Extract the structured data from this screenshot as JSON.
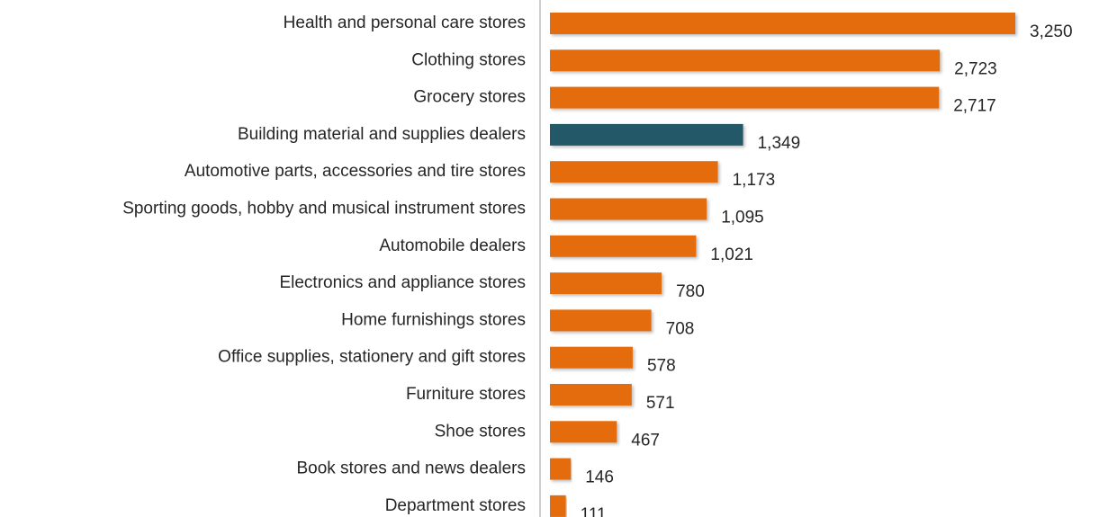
{
  "chart_data": {
    "type": "bar",
    "orientation": "horizontal",
    "categories": [
      "Health and personal care stores",
      "Clothing stores",
      "Grocery stores",
      "Building material and supplies dealers",
      "Automotive parts, accessories and tire stores",
      "Sporting goods, hobby and musical instrument stores",
      "Automobile dealers",
      "Electronics and appliance stores",
      "Home furnishings stores",
      "Office supplies, stationery and gift stores",
      "Furniture stores",
      "Shoe stores",
      "Book stores and news dealers",
      "Department stores"
    ],
    "values": [
      3250,
      2723,
      2717,
      1349,
      1173,
      1095,
      1021,
      780,
      708,
      578,
      571,
      467,
      146,
      111
    ],
    "value_labels": [
      "3,250",
      "2,723",
      "2,717",
      "1,349",
      "1,173",
      "1,095",
      "1,021",
      "780",
      "708",
      "578",
      "571",
      "467",
      "146",
      "111"
    ],
    "colors": [
      "#e46c0a",
      "#e46c0a",
      "#e46c0a",
      "#215968",
      "#e46c0a",
      "#e46c0a",
      "#e46c0a",
      "#e46c0a",
      "#e46c0a",
      "#e46c0a",
      "#e46c0a",
      "#e46c0a",
      "#e46c0a",
      "#e46c0a"
    ]
  }
}
